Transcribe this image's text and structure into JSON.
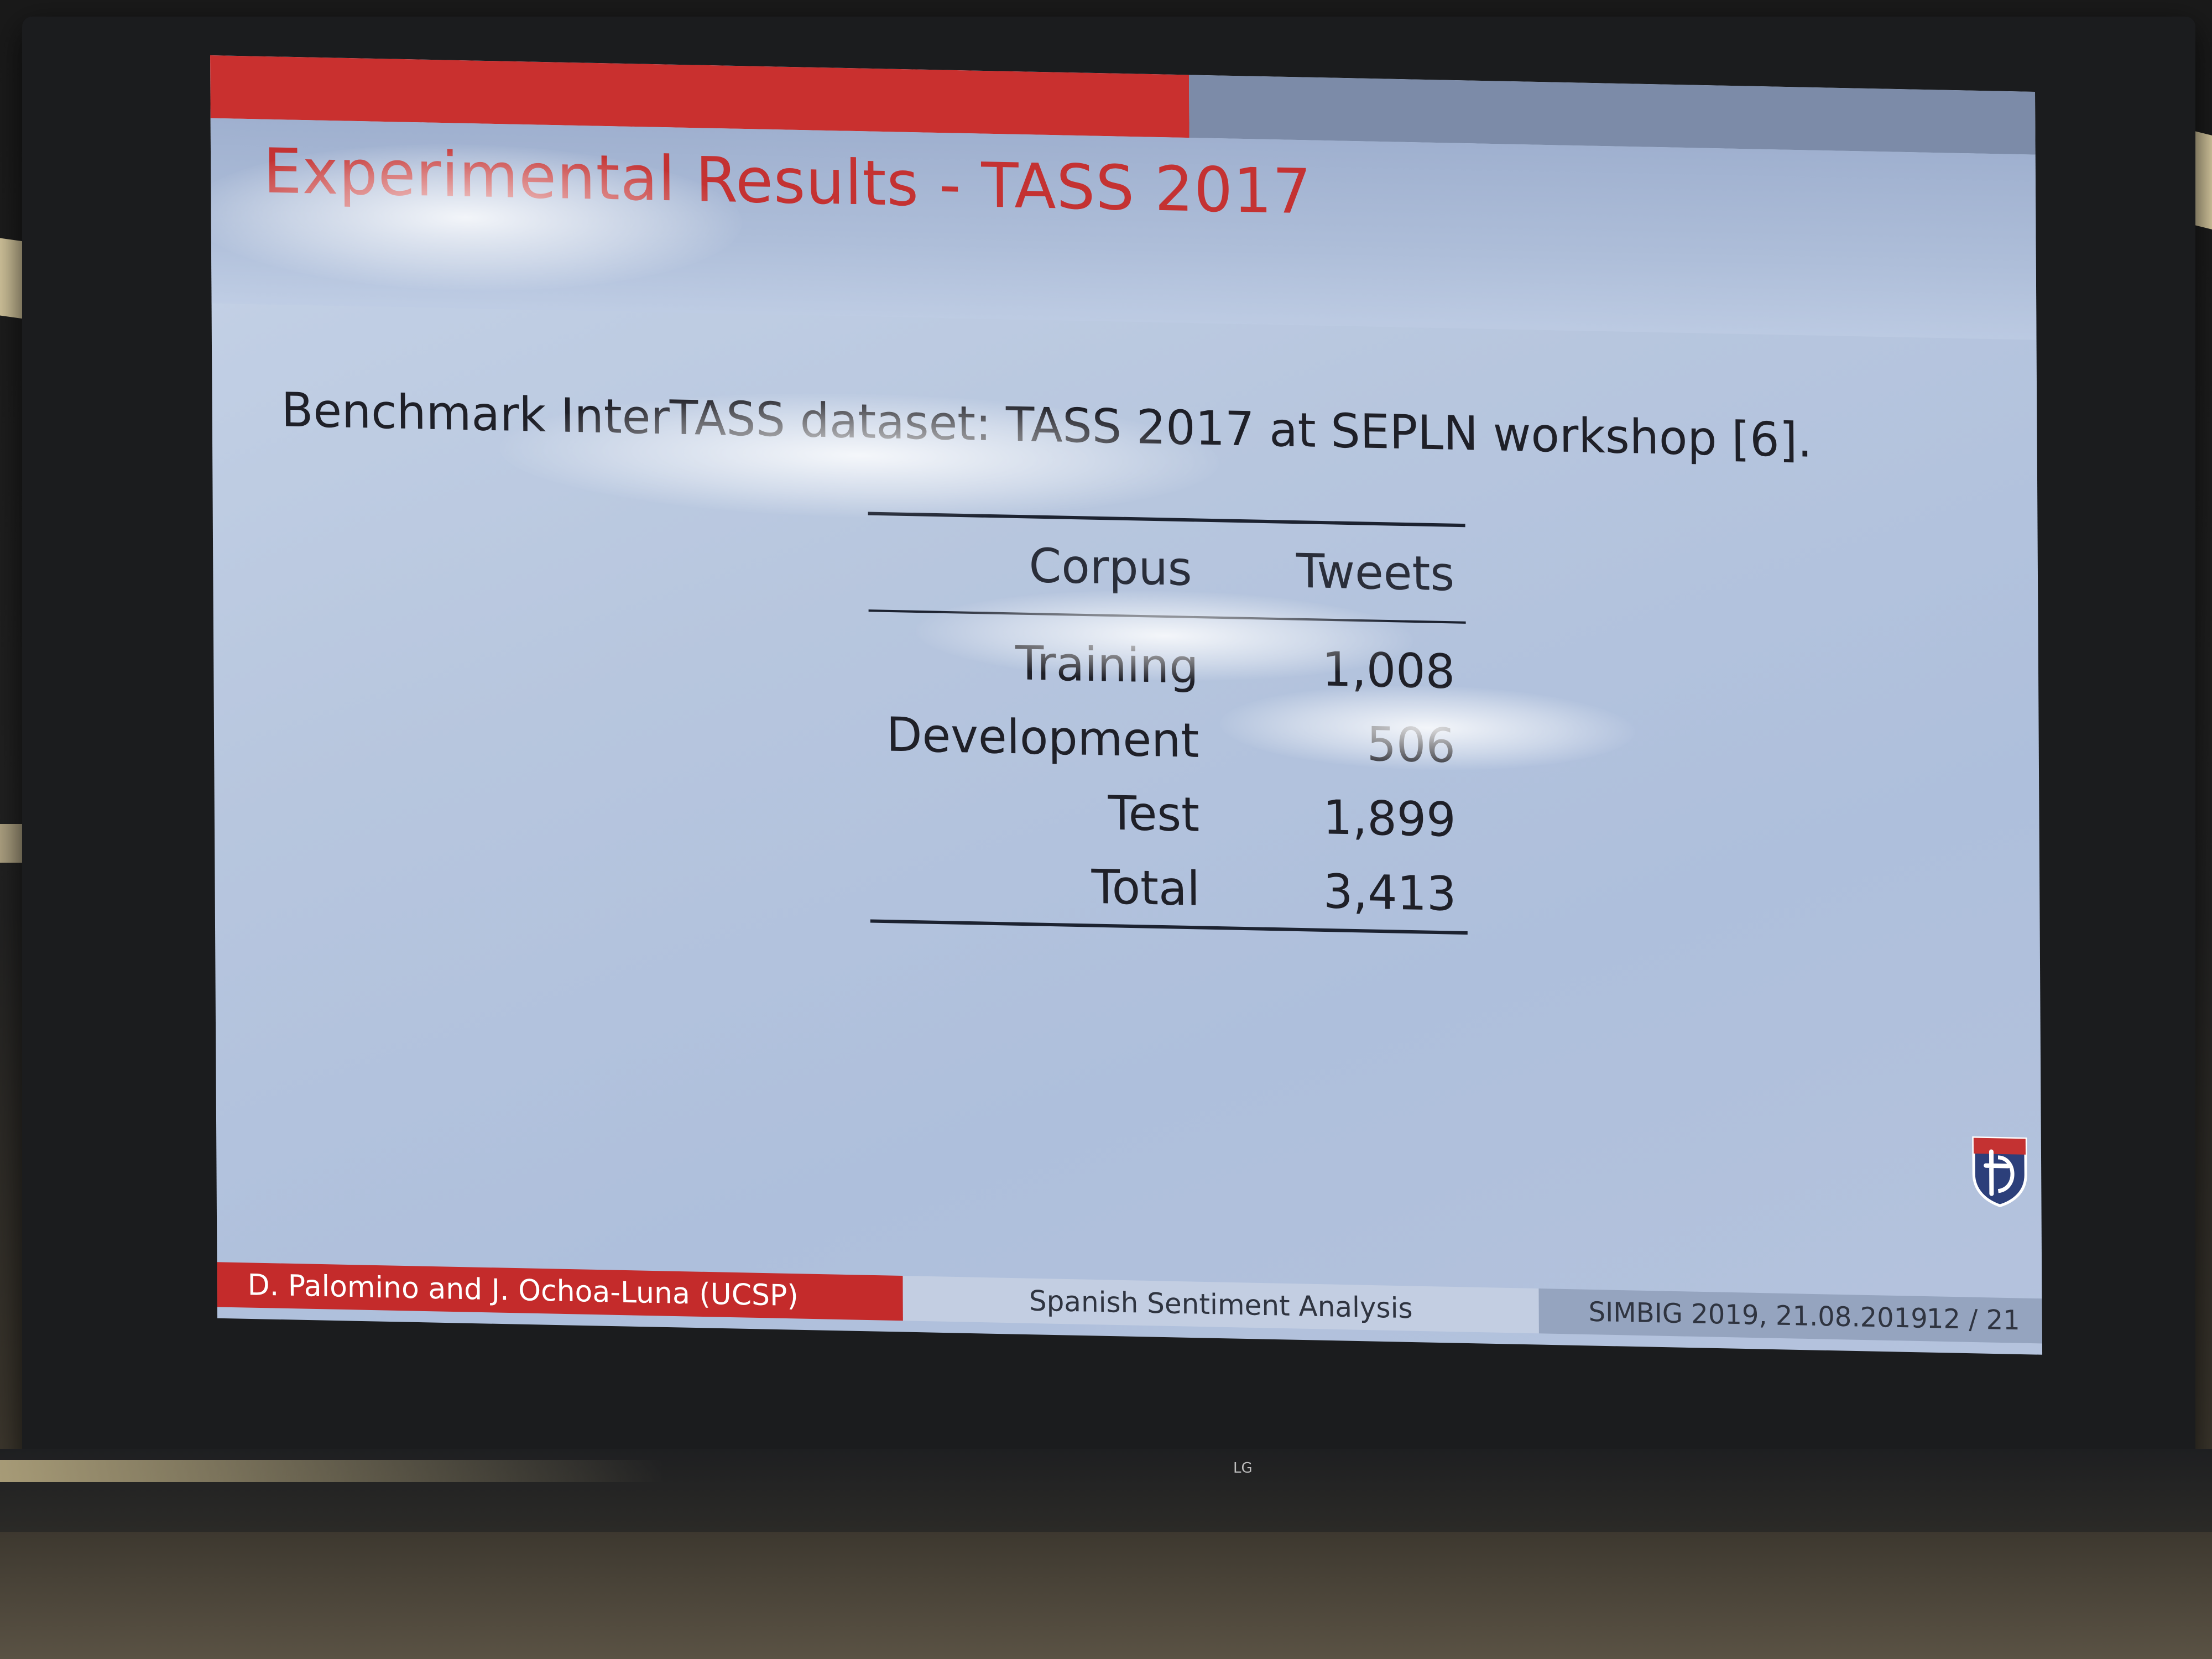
{
  "slide": {
    "title": "Experimental Results - TASS 2017",
    "intro": "Benchmark InterTASS dataset: TASS 2017 at SEPLN workshop [6].",
    "table": {
      "headers": [
        "Corpus",
        "Tweets"
      ],
      "rows": [
        {
          "corpus": "Training",
          "tweets": "1,008"
        },
        {
          "corpus": "Development",
          "tweets": "506"
        },
        {
          "corpus": "Test",
          "tweets": "1,899"
        },
        {
          "corpus": "Total",
          "tweets": "3,413"
        }
      ]
    },
    "footer": {
      "authors": "D. Palomino and J. Ochoa-Luna  (UCSP)",
      "topic": "Spanish Sentiment Analysis",
      "event": "SIMBIG 2019, 21.08.2019",
      "page": "12 / 21"
    }
  },
  "tv": {
    "brand": "LG"
  },
  "colors": {
    "accent_red": "#c9302f",
    "slide_bg": "#b7c6de",
    "text": "#1f2028"
  }
}
